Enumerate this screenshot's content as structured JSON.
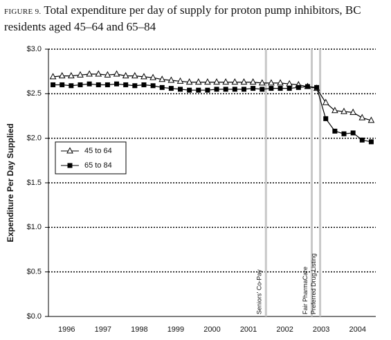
{
  "chart_data": {
    "type": "line",
    "figure_label": "FIGURE 9.",
    "title": "Total expenditure per day of supply for proton pump inhibitors, BC residents aged 45–64 and 65–84",
    "ylabel": "Expenditure Per Day Supplied",
    "x": [
      1996.125,
      1996.375,
      1996.625,
      1996.875,
      1997.125,
      1997.375,
      1997.625,
      1997.875,
      1998.125,
      1998.375,
      1998.625,
      1998.875,
      1999.125,
      1999.375,
      1999.625,
      1999.875,
      2000.125,
      2000.375,
      2000.625,
      2000.875,
      2001.125,
      2001.375,
      2001.625,
      2001.875,
      2002.125,
      2002.375,
      2002.625,
      2002.875,
      2003.125,
      2003.375,
      2003.625,
      2003.875,
      2004.125,
      2004.375,
      2004.625,
      2004.875
    ],
    "series": [
      {
        "name": "45 to 64",
        "color": "#000000",
        "marker": "triangle-open",
        "values": [
          2.69,
          2.7,
          2.7,
          2.71,
          2.72,
          2.72,
          2.71,
          2.72,
          2.7,
          2.7,
          2.69,
          2.68,
          2.66,
          2.65,
          2.64,
          2.63,
          2.63,
          2.63,
          2.63,
          2.63,
          2.63,
          2.63,
          2.63,
          2.62,
          2.62,
          2.62,
          2.61,
          2.6,
          2.58,
          2.56,
          2.4,
          2.31,
          2.3,
          2.29,
          2.23,
          2.2
        ]
      },
      {
        "name": "65 to 84",
        "color": "#000000",
        "marker": "square",
        "values": [
          2.6,
          2.6,
          2.59,
          2.6,
          2.61,
          2.6,
          2.6,
          2.61,
          2.6,
          2.59,
          2.6,
          2.59,
          2.57,
          2.56,
          2.55,
          2.54,
          2.54,
          2.54,
          2.55,
          2.55,
          2.55,
          2.55,
          2.56,
          2.55,
          2.56,
          2.56,
          2.56,
          2.57,
          2.58,
          2.57,
          2.22,
          2.08,
          2.05,
          2.06,
          1.98,
          1.96
        ]
      }
    ],
    "xlim": [
      1996,
      2005
    ],
    "xticks": [
      {
        "value": 1996.5,
        "label": "1996"
      },
      {
        "value": 1997.5,
        "label": "1997"
      },
      {
        "value": 1998.5,
        "label": "1998"
      },
      {
        "value": 1999.5,
        "label": "1999"
      },
      {
        "value": 2000.5,
        "label": "2000"
      },
      {
        "value": 2001.5,
        "label": "2001"
      },
      {
        "value": 2002.5,
        "label": "2002"
      },
      {
        "value": 2003.5,
        "label": "2003"
      },
      {
        "value": 2004.5,
        "label": "2004"
      }
    ],
    "ylim": [
      0,
      3
    ],
    "yticks": [
      {
        "value": 0,
        "label": "$0.0"
      },
      {
        "value": 0.5,
        "label": "$0.5"
      },
      {
        "value": 1,
        "label": "$1.0"
      },
      {
        "value": 1.5,
        "label": "$1.5"
      },
      {
        "value": 2,
        "label": "$2.0"
      },
      {
        "value": 2.5,
        "label": "$2.5"
      },
      {
        "value": 3,
        "label": "$3.0"
      }
    ],
    "grid": true,
    "legend": "left",
    "events": [
      {
        "label": "Seniors' Co-Pay",
        "x": 2001.98
      },
      {
        "label": "Fair PharmaCare",
        "x": 2003.24
      },
      {
        "label": "Preferred Drug Listing",
        "x": 2003.47
      }
    ]
  }
}
